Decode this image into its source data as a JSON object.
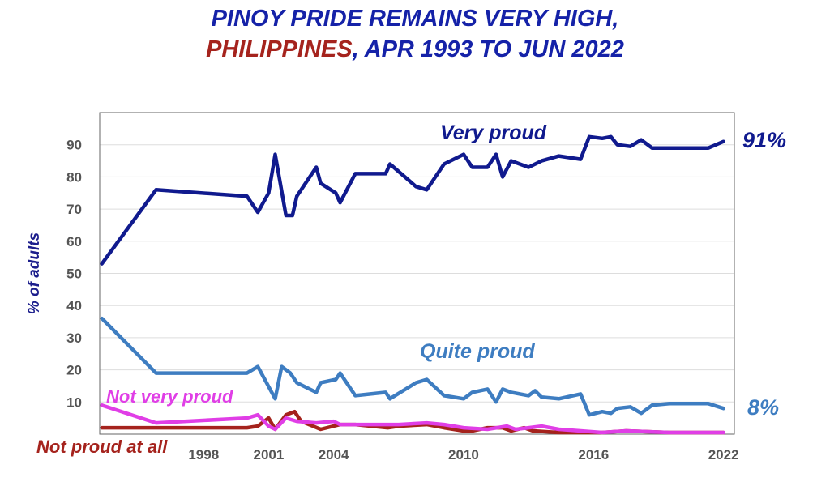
{
  "title": {
    "line1": "PINOY PRIDE REMAINS VERY HIGH,",
    "line2_red": "PHILIPPINES",
    "line2_blue": ", APR 1993 TO JUN 2022"
  },
  "colors": {
    "very_proud": "#101a8e",
    "quite_proud": "#3e7dc1",
    "not_very_proud": "#e03ee6",
    "not_proud_at_all": "#a5231d",
    "title_blue": "#1522a8",
    "grid": "#dddddd"
  },
  "chart_data": {
    "type": "line",
    "ylabel": "% of adults",
    "ylim": [
      0,
      100
    ],
    "yticks": [
      10,
      20,
      30,
      40,
      50,
      60,
      70,
      80,
      90
    ],
    "xlim": [
      1993.2,
      2022.5
    ],
    "xtick_labels": [
      "1998",
      "2001",
      "2004",
      "2010",
      "2016",
      "2022"
    ],
    "xtick_values": [
      1998,
      2001,
      2004,
      2010,
      2016,
      2022
    ],
    "grid": true,
    "end_labels": {
      "very_proud": "91%",
      "quite_proud": "8%"
    },
    "series": [
      {
        "key": "very_proud",
        "name": "Very proud",
        "x": [
          1993.3,
          1995.8,
          2000.0,
          2000.5,
          2001.0,
          2001.3,
          2001.8,
          2002.1,
          2002.3,
          2003.2,
          2003.4,
          2004.1,
          2004.3,
          2005.0,
          2006.4,
          2006.6,
          2007.8,
          2008.3,
          2009.1,
          2010.0,
          2010.4,
          2011.1,
          2011.5,
          2011.8,
          2012.2,
          2013.0,
          2013.6,
          2014.4,
          2015.4,
          2015.8,
          2016.4,
          2016.8,
          2017.1,
          2017.7,
          2018.2,
          2018.7,
          2019.5,
          2020.5,
          2021.3,
          2022.0
        ],
        "values": [
          53,
          76,
          74,
          69,
          75,
          87,
          68,
          68,
          74,
          83,
          78,
          75,
          72,
          81,
          81,
          84,
          77,
          76,
          84,
          87,
          83,
          83,
          87,
          80,
          85,
          83,
          85,
          86.5,
          85.5,
          92.5,
          92,
          92.5,
          90,
          89.5,
          91.5,
          89,
          89,
          89,
          89,
          91
        ]
      },
      {
        "key": "quite_proud",
        "name": "Quite proud",
        "x": [
          1993.3,
          1995.8,
          2000.0,
          2000.5,
          2001.3,
          2001.6,
          2002.0,
          2002.3,
          2003.2,
          2003.4,
          2004.1,
          2004.3,
          2005.0,
          2006.4,
          2006.6,
          2007.8,
          2008.3,
          2009.1,
          2010.0,
          2010.4,
          2011.1,
          2011.5,
          2011.8,
          2012.2,
          2013.0,
          2013.3,
          2013.6,
          2014.4,
          2015.4,
          2015.8,
          2016.4,
          2016.8,
          2017.1,
          2017.7,
          2018.2,
          2018.7,
          2019.5,
          2021.3,
          2022.0
        ],
        "values": [
          36,
          19,
          19,
          21,
          11,
          21,
          19,
          16,
          13,
          16,
          17,
          19,
          12,
          13,
          11,
          16,
          17,
          12,
          11,
          13,
          14,
          10,
          14,
          13,
          12,
          13.5,
          11.5,
          11,
          12.5,
          6,
          7,
          6.5,
          8,
          8.5,
          6.5,
          9,
          9.5,
          9.5,
          8
        ]
      },
      {
        "key": "not_very_proud",
        "name": "Not very proud",
        "x": [
          1993.3,
          1995.8,
          2000.0,
          2000.5,
          2001.0,
          2001.3,
          2001.8,
          2002.3,
          2003.2,
          2004.0,
          2004.3,
          2005.0,
          2007.0,
          2008.3,
          2009.1,
          2010.0,
          2011.1,
          2012.0,
          2012.4,
          2013.0,
          2013.6,
          2014.4,
          2015.4,
          2016.4,
          2017.5,
          2019.5,
          2022.0
        ],
        "values": [
          9,
          3.5,
          5,
          6,
          2.5,
          1.5,
          5,
          4,
          3.5,
          4,
          3,
          3,
          3,
          3.5,
          3,
          2,
          1.5,
          2.5,
          1.5,
          2,
          2.5,
          1.5,
          1,
          0.5,
          1,
          0.5,
          0.5
        ]
      },
      {
        "key": "not_proud_at_all",
        "name": "Not proud at all",
        "x": [
          1993.3,
          1995.8,
          2000.0,
          2000.5,
          2001.0,
          2001.3,
          2001.8,
          2002.2,
          2002.5,
          2003.4,
          2004.3,
          2005.0,
          2006.5,
          2007.0,
          2008.3,
          2009.1,
          2010.0,
          2010.4,
          2011.1,
          2011.8,
          2012.2,
          2012.8,
          2013.2,
          2014.4,
          2015.4,
          2016.4,
          2017.5,
          2019.5,
          2022.0
        ],
        "values": [
          2,
          2,
          2,
          2.5,
          5,
          1.5,
          6,
          7,
          4,
          1.5,
          3,
          3,
          2,
          2.5,
          3,
          2,
          1,
          1,
          2,
          2,
          1,
          2,
          1,
          0.5,
          0.5,
          0.5,
          1,
          0.5,
          0.5
        ]
      }
    ]
  }
}
